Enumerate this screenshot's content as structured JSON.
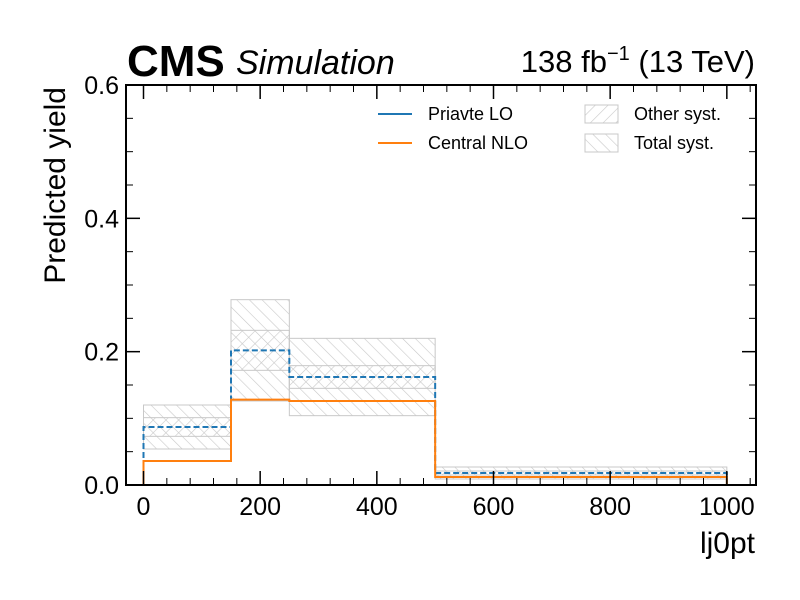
{
  "header": {
    "experiment": "CMS",
    "status": "Simulation",
    "lumi_value": "138 fb",
    "lumi_exp": "−1",
    "lumi_energy": " (13 TeV)"
  },
  "chart_data": {
    "type": "step",
    "xlabel": "lj0pt",
    "ylabel": "Predicted yield",
    "xlim": [
      -30,
      1050
    ],
    "ylim": [
      0,
      0.6
    ],
    "xticks": [
      0,
      200,
      400,
      600,
      800,
      1000
    ],
    "xtick_labels": [
      "0",
      "200",
      "400",
      "600",
      "800",
      "1000"
    ],
    "yticks": [
      0.0,
      0.2,
      0.4,
      0.6
    ],
    "ytick_labels": [
      "0.0",
      "0.2",
      "0.4",
      "0.6"
    ],
    "bin_edges": [
      0,
      150,
      250,
      500,
      1000
    ],
    "series": [
      {
        "name": "Priavte LO",
        "color": "#1f77b4",
        "style": "dashed",
        "values": [
          0.087,
          0.202,
          0.162,
          0.018
        ]
      },
      {
        "name": "Central NLO",
        "color": "#ff7f0e",
        "style": "solid",
        "values": [
          0.036,
          0.128,
          0.126,
          0.012
        ]
      }
    ],
    "bands": [
      {
        "name": "Other syst.",
        "hatch": "forward",
        "color": "#c8c8c8",
        "low": [
          0.073,
          0.172,
          0.145,
          0.015
        ],
        "high": [
          0.101,
          0.232,
          0.179,
          0.021
        ]
      },
      {
        "name": "Total syst.",
        "hatch": "backward",
        "color": "#c8c8c8",
        "low": [
          0.054,
          0.126,
          0.104,
          0.009
        ],
        "high": [
          0.12,
          0.278,
          0.22,
          0.027
        ]
      }
    ],
    "legend": {
      "placement": "top-right",
      "entries": [
        "Priavte LO",
        "Central NLO",
        "Other syst.",
        "Total syst."
      ]
    }
  }
}
